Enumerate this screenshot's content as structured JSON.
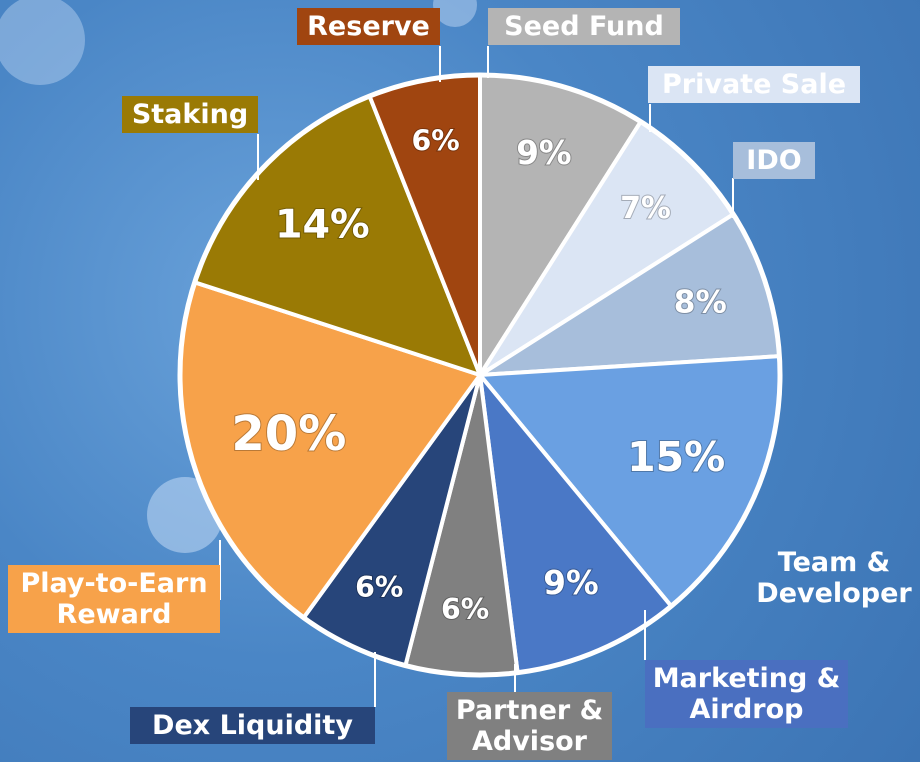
{
  "chart_data": {
    "type": "pie",
    "categories": [
      "Seed Fund",
      "Private Sale",
      "IDO",
      "Team & Developer",
      "Marketing & Airdrop",
      "Partner & Advisor",
      "Dex Liquidity",
      "Play-to-Earn Reward",
      "Staking",
      "Reserve"
    ],
    "values": [
      9,
      7,
      8,
      15,
      9,
      6,
      6,
      20,
      14,
      6
    ],
    "value_labels": [
      "9%",
      "7%",
      "8%",
      "15%",
      "9%",
      "6%",
      "6%",
      "20%",
      "14%",
      "6%"
    ],
    "colors": [
      "#b4b4b4",
      "#dbe5f4",
      "#a7bedb",
      "#6aa0e2",
      "#4a78c6",
      "#808080",
      "#27457a",
      "#f7a24a",
      "#9a7a05",
      "#a04510"
    ]
  }
}
